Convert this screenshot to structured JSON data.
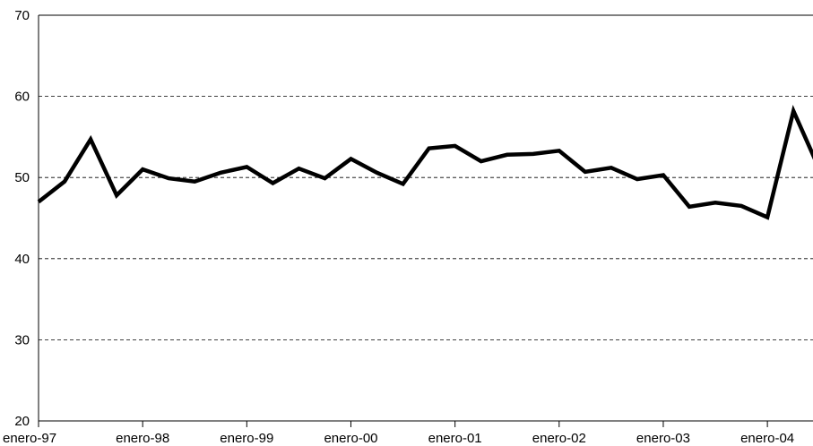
{
  "chart_data": {
    "type": "line",
    "categories": [
      "enero-97",
      null,
      null,
      null,
      "enero-98",
      null,
      null,
      null,
      "enero-99",
      null,
      null,
      null,
      "enero-00",
      null,
      null,
      null,
      "enero-01",
      null,
      null,
      null,
      "enero-02",
      null,
      null,
      null,
      "enero-03",
      null,
      null,
      null,
      "enero-04",
      null,
      null
    ],
    "values": [
      47,
      49.5,
      54.7,
      47.8,
      51,
      49.9,
      49.5,
      50.6,
      51.3,
      49.3,
      51.1,
      49.9,
      52.3,
      50.6,
      49.2,
      53.6,
      53.9,
      52,
      52.8,
      52.9,
      53.3,
      50.7,
      51.2,
      49.8,
      50.3,
      46.4,
      46.9,
      46.5,
      45.1,
      58.2,
      51
    ],
    "color": "#000000",
    "ylim": [
      20,
      70
    ],
    "yticks": [
      20,
      30,
      40,
      50,
      60,
      70
    ],
    "grid": true
  }
}
